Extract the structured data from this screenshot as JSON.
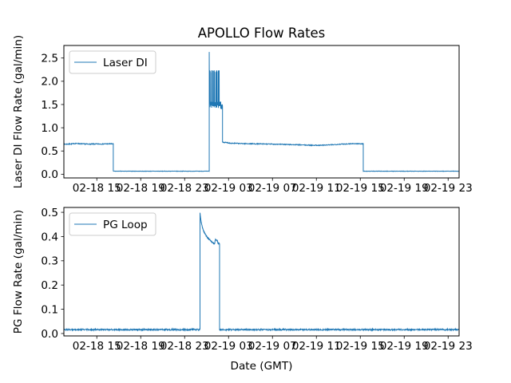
{
  "figure": {
    "title": "APOLLO Flow Rates",
    "xlabel": "Date (GMT)",
    "background": "#ffffff",
    "line_color": "#1f77b4",
    "spine_color": "#000000",
    "legend_edge_color": "#cccccc"
  },
  "chart_data": [
    {
      "type": "line",
      "title": "APOLLO Flow Rates",
      "ylabel": "Laser DI Flow Rate (gal/min)",
      "x_unit": "hours since 02-18 12 (GMT)",
      "xlim": [
        0,
        36
      ],
      "ylim": [
        -0.08,
        2.77
      ],
      "grid": false,
      "legend_position": "upper left",
      "xtick_values": [
        3,
        7,
        11,
        15,
        19,
        23,
        27,
        31,
        35
      ],
      "xtick_labels": [
        "02-18 15",
        "02-18 19",
        "02-18 23",
        "02-19 03",
        "02-19 07",
        "02-19 11",
        "02-19 15",
        "02-19 19",
        "02-19 23"
      ],
      "ytick_values": [
        0.0,
        0.5,
        1.0,
        1.5,
        2.0,
        2.5
      ],
      "ytick_labels": [
        "0.0",
        "0.5",
        "1.0",
        "1.5",
        "2.0",
        "2.5"
      ],
      "series": [
        {
          "name": "Laser DI",
          "color": "#1f77b4",
          "segments": [
            {
              "mode": "points",
              "noise": 0.01,
              "dt": 0.025,
              "points": [
                [
                  0,
                  0.645
                ],
                [
                  0.7,
                  0.652
                ],
                [
                  1.1,
                  0.662
                ],
                [
                  1.5,
                  0.655
                ],
                [
                  2.2,
                  0.648
                ],
                [
                  3.0,
                  0.65
                ],
                [
                  3.8,
                  0.652
                ],
                [
                  4.5,
                  0.654
                ]
              ]
            },
            {
              "mode": "flat",
              "from": 4.5,
              "to": 13.24,
              "level": 0.065,
              "noise": 0.004
            },
            {
              "mode": "burst",
              "from": 13.24,
              "to": 14.45,
              "peak": 2.63,
              "band_low": 1.42,
              "band_high": 2.24
            },
            {
              "mode": "points",
              "noise": 0.009,
              "dt": 0.025,
              "points": [
                [
                  14.45,
                  0.69
                ],
                [
                  15.2,
                  0.668
                ],
                [
                  16.5,
                  0.658
                ],
                [
                  18.0,
                  0.652
                ],
                [
                  19.5,
                  0.645
                ],
                [
                  21.0,
                  0.635
                ],
                [
                  22.3,
                  0.625
                ],
                [
                  23.3,
                  0.622
                ],
                [
                  24.3,
                  0.632
                ],
                [
                  25.3,
                  0.648
                ],
                [
                  26.3,
                  0.658
                ],
                [
                  27.27,
                  0.655
                ]
              ]
            },
            {
              "mode": "flat",
              "from": 27.27,
              "to": 36,
              "level": 0.065,
              "noise": 0.004
            }
          ]
        }
      ]
    },
    {
      "type": "line",
      "ylabel": "PG Flow Rate (gal/min)",
      "xlabel": "Date (GMT)",
      "x_unit": "hours since 02-18 12 (GMT)",
      "xlim": [
        0,
        36
      ],
      "ylim": [
        -0.01,
        0.52
      ],
      "grid": false,
      "legend_position": "upper left",
      "xtick_values": [
        3,
        7,
        11,
        15,
        19,
        23,
        27,
        31,
        35
      ],
      "xtick_labels": [
        "02-18 15",
        "02-18 19",
        "02-18 23",
        "02-19 03",
        "02-19 07",
        "02-19 11",
        "02-19 15",
        "02-19 19",
        "02-19 23"
      ],
      "ytick_values": [
        0.0,
        0.1,
        0.2,
        0.3,
        0.4,
        0.5
      ],
      "ytick_labels": [
        "0.0",
        "0.1",
        "0.2",
        "0.3",
        "0.4",
        "0.5"
      ],
      "series": [
        {
          "name": "PG Loop",
          "color": "#1f77b4",
          "segments": [
            {
              "mode": "flat",
              "from": 0,
              "to": 12.4,
              "level": 0.016,
              "noise": 0.003
            },
            {
              "mode": "points",
              "noise": 0.0015,
              "dt": 0.01,
              "points": [
                [
                  12.4,
                  0.497
                ],
                [
                  12.5,
                  0.462
                ],
                [
                  12.62,
                  0.437
                ],
                [
                  12.75,
                  0.42
                ],
                [
                  12.9,
                  0.408
                ],
                [
                  13.05,
                  0.398
                ],
                [
                  13.2,
                  0.39
                ],
                [
                  13.35,
                  0.384
                ],
                [
                  13.5,
                  0.377
                ],
                [
                  13.62,
                  0.372
                ],
                [
                  13.73,
                  0.37
                ],
                [
                  13.79,
                  0.387
                ],
                [
                  13.98,
                  0.384
                ],
                [
                  14.04,
                  0.371
                ],
                [
                  14.18,
                  0.37
                ]
              ]
            },
            {
              "mode": "flat",
              "from": 14.18,
              "to": 36,
              "level": 0.016,
              "noise": 0.003
            }
          ]
        }
      ]
    }
  ]
}
